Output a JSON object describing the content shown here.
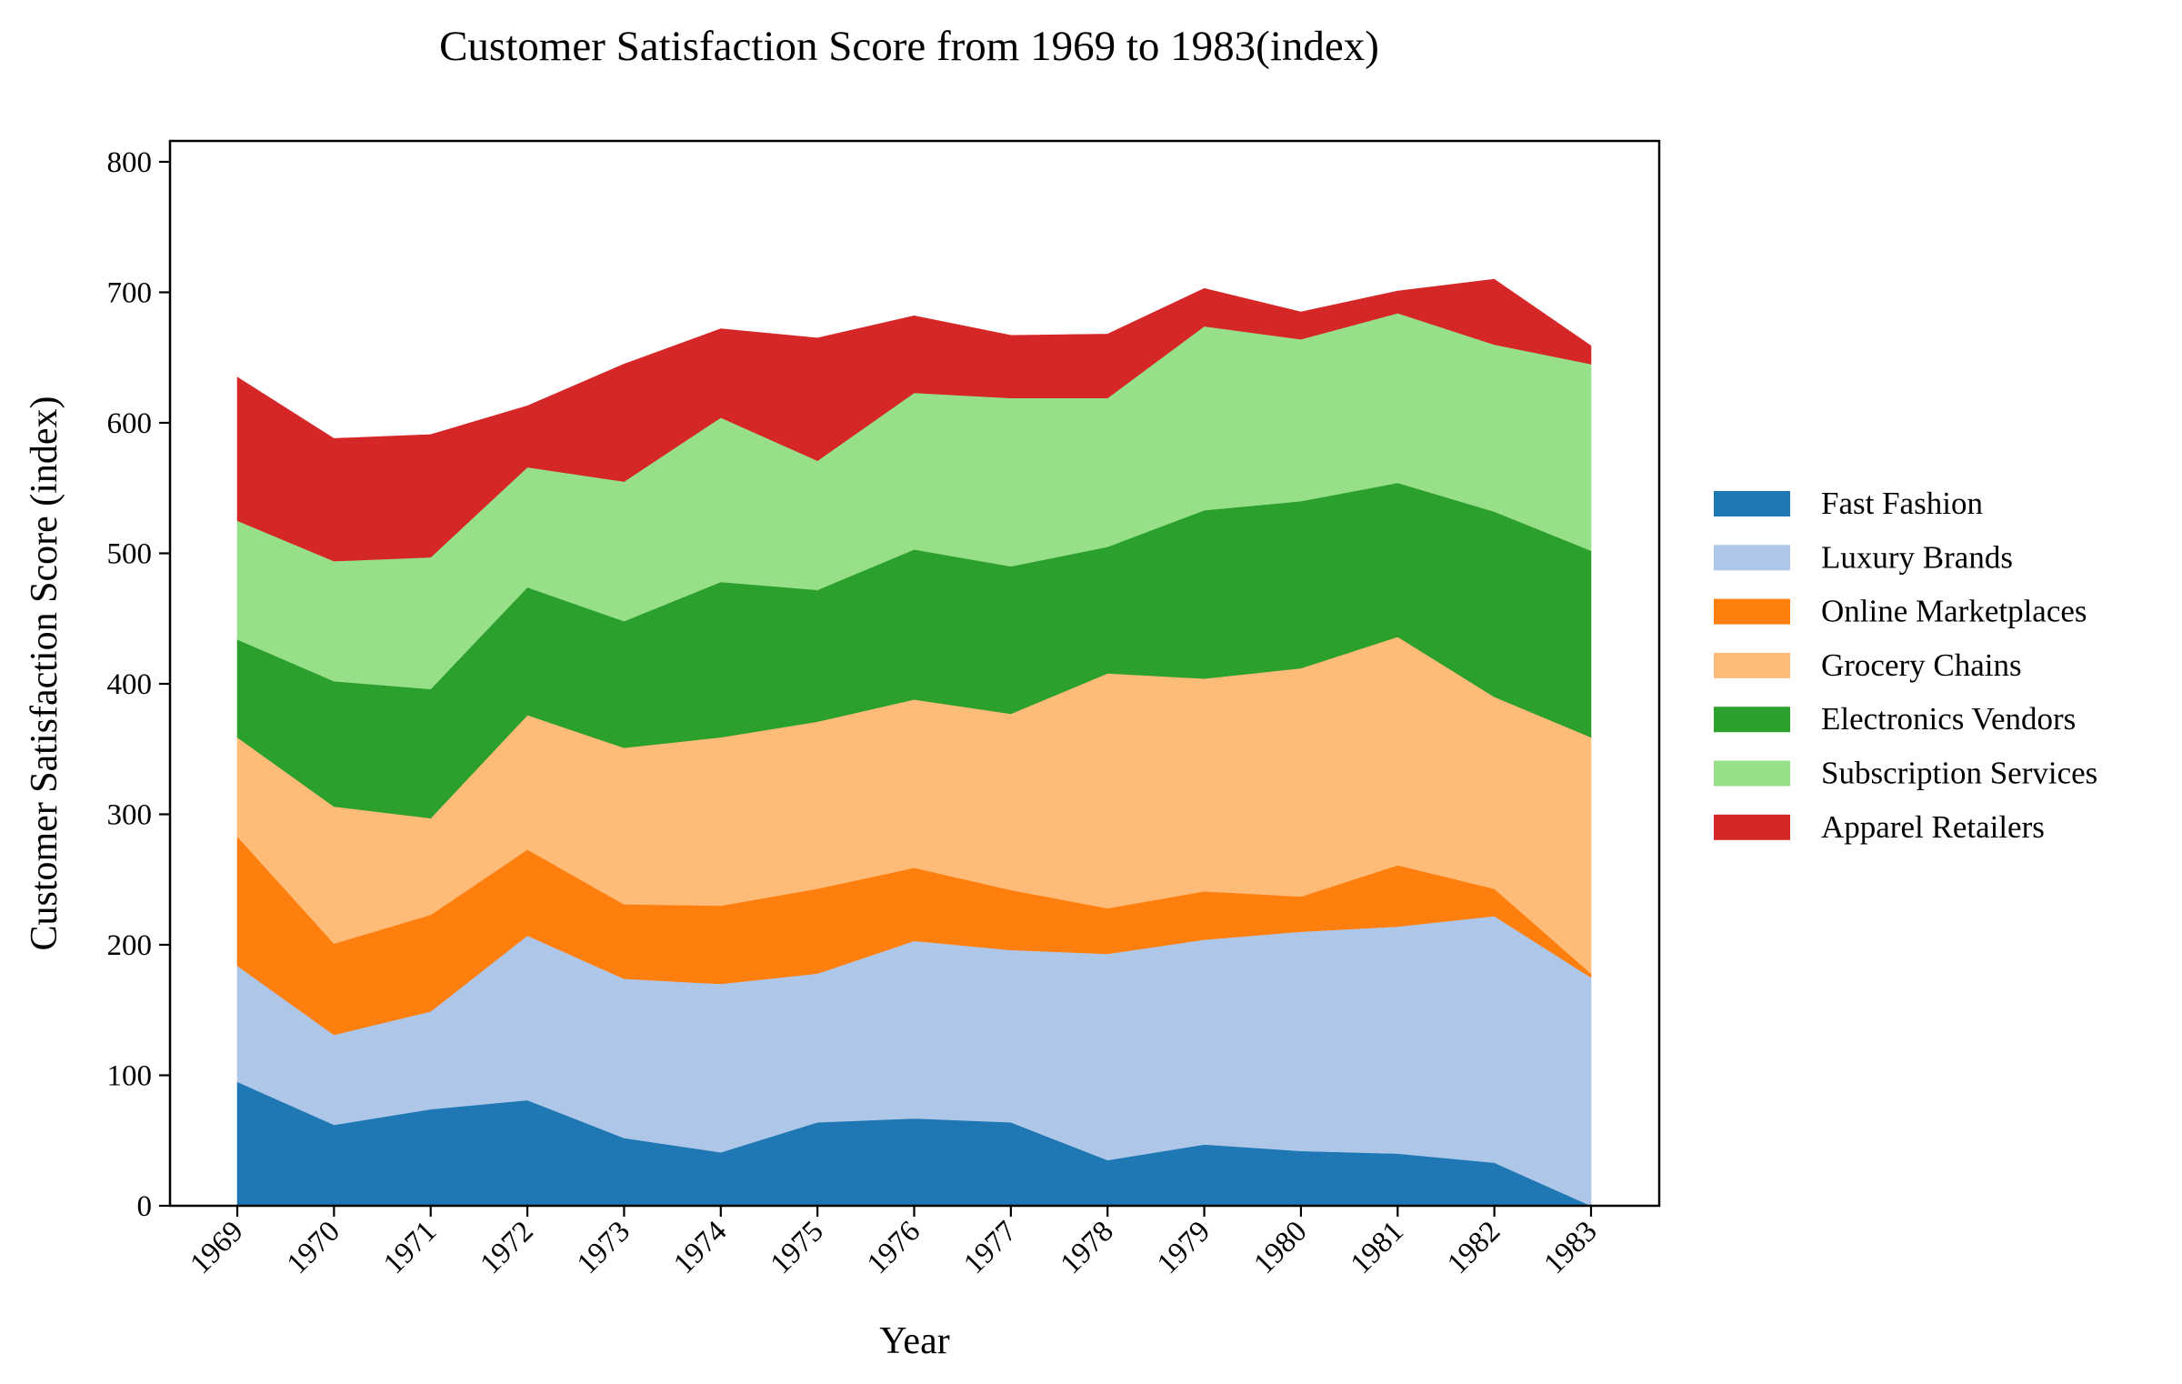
{
  "chart_data": {
    "type": "area",
    "stacked": true,
    "title": "Customer Satisfaction Score from 1969 to 1983(index)",
    "xlabel": "Year",
    "ylabel": "Customer Satisfaction Score (index)",
    "ylim": [
      0,
      816
    ],
    "yticks": [
      0,
      100,
      200,
      300,
      400,
      500,
      600,
      700,
      800
    ],
    "x": [
      "1969",
      "1970",
      "1971",
      "1972",
      "1973",
      "1974",
      "1975",
      "1976",
      "1977",
      "1978",
      "1979",
      "1980",
      "1981",
      "1982",
      "1983"
    ],
    "grid": false,
    "legend_position": "right",
    "series": [
      {
        "name": "Fast Fashion",
        "color": "#1f77b4",
        "values": [
          95,
          62,
          74,
          81,
          52,
          41,
          64,
          67,
          64,
          35,
          47,
          42,
          40,
          33,
          0
        ]
      },
      {
        "name": "Luxury Brands",
        "color": "#aec7e8",
        "values": [
          89,
          69,
          75,
          126,
          122,
          129,
          114,
          136,
          132,
          158,
          157,
          168,
          174,
          189,
          175
        ]
      },
      {
        "name": "Online Marketplaces",
        "color": "#ff7f0e",
        "values": [
          99,
          70,
          74,
          66,
          57,
          60,
          65,
          56,
          46,
          35,
          37,
          27,
          47,
          21,
          3
        ]
      },
      {
        "name": "Grocery Chains",
        "color": "#ffbb78",
        "values": [
          76,
          105,
          74,
          103,
          120,
          129,
          128,
          129,
          135,
          180,
          163,
          175,
          175,
          147,
          181
        ]
      },
      {
        "name": "Electronics Vendors",
        "color": "#2ca02c",
        "values": [
          75,
          96,
          99,
          98,
          97,
          119,
          101,
          115,
          113,
          97,
          129,
          128,
          118,
          142,
          143
        ]
      },
      {
        "name": "Subscription Services",
        "color": "#98df8a",
        "values": [
          91,
          92,
          101,
          92,
          107,
          126,
          99,
          120,
          129,
          114,
          141,
          124,
          130,
          128,
          143
        ]
      },
      {
        "name": "Apparel Retailers",
        "color": "#d62728",
        "values": [
          110,
          94,
          94,
          47,
          90,
          68,
          94,
          59,
          48,
          49,
          29,
          21,
          17,
          50,
          14
        ]
      }
    ]
  }
}
